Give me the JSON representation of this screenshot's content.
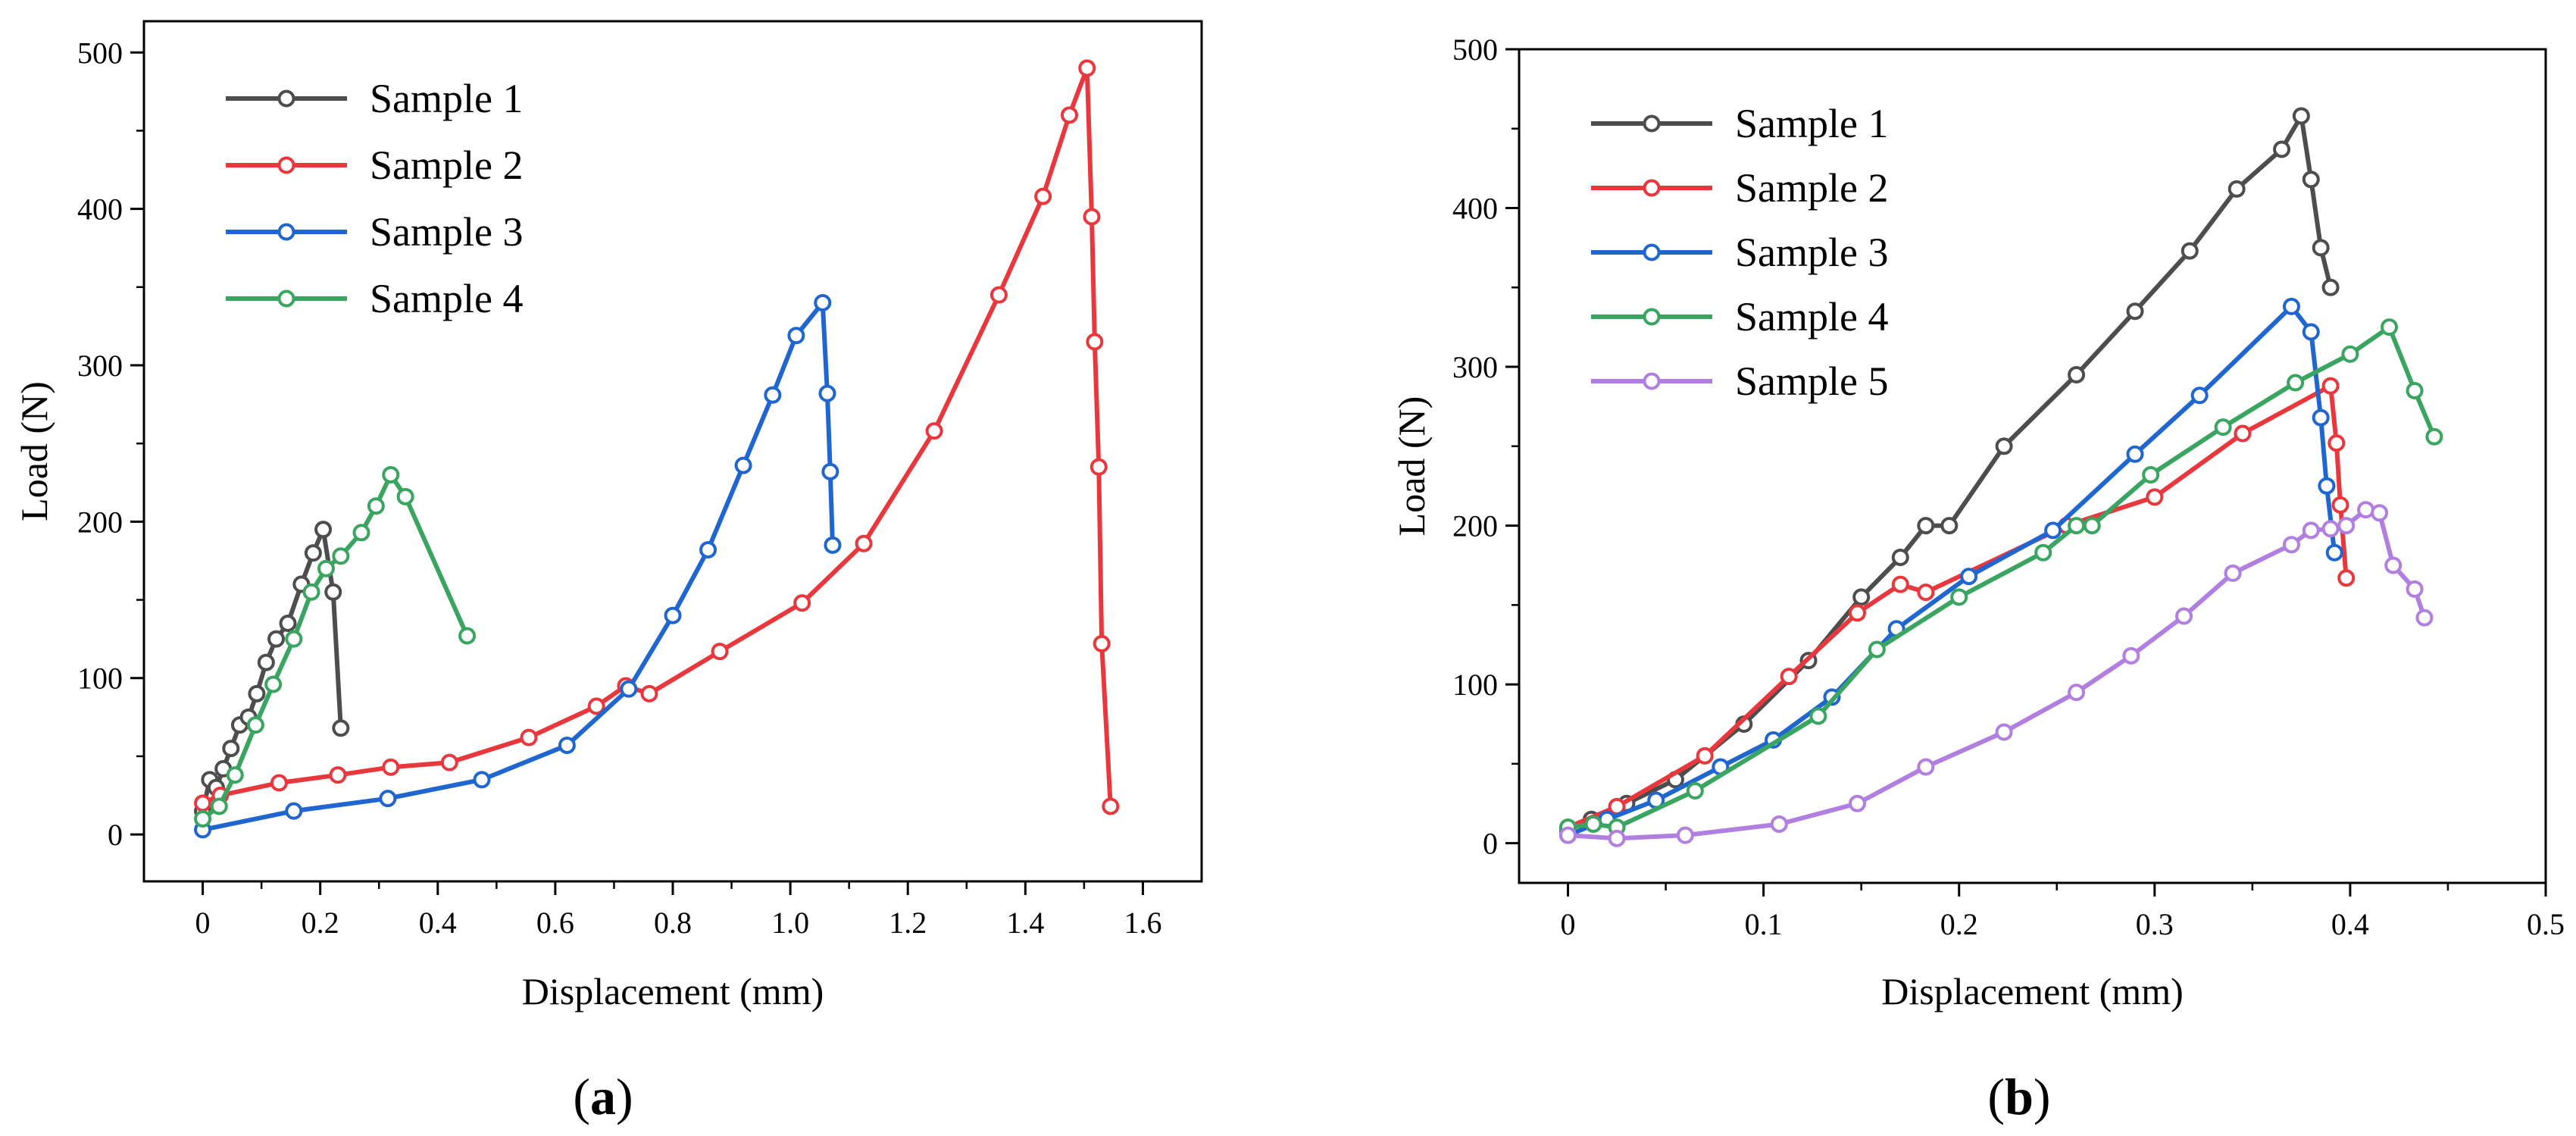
{
  "chart_data": [
    {
      "type": "line",
      "panel_label": {
        "open": "(",
        "letter": "a",
        "close": ")"
      },
      "title": "",
      "xlabel": "Displacement (mm)",
      "ylabel": "Load (N)",
      "xlim": [
        -0.1,
        1.7
      ],
      "ylim": [
        -30,
        520
      ],
      "xticks": [
        0,
        0.2,
        0.4,
        0.6,
        0.8,
        1.0,
        1.2,
        1.4,
        1.6
      ],
      "xtick_labels": [
        "0",
        "0.2",
        "0.4",
        "0.6",
        "0.8",
        "1.0",
        "1.2",
        "1.4",
        "1.6"
      ],
      "yticks": [
        0,
        100,
        200,
        300,
        400,
        500
      ],
      "ytick_labels": [
        "0",
        "100",
        "200",
        "300",
        "400",
        "500"
      ],
      "legend_position": "top-left",
      "series": [
        {
          "name": "Sample 1",
          "color": "#4d4d4d",
          "x": [
            0,
            0.012,
            0.023,
            0.035,
            0.048,
            0.063,
            0.078,
            0.092,
            0.108,
            0.125,
            0.145,
            0.168,
            0.188,
            0.205,
            0.222,
            0.235
          ],
          "y": [
            15,
            35,
            30,
            42,
            55,
            70,
            75,
            90,
            110,
            125,
            135,
            160,
            180,
            195,
            155,
            68
          ]
        },
        {
          "name": "Sample 2",
          "color": "#e8383d",
          "x": [
            0,
            0.03,
            0.13,
            0.23,
            0.32,
            0.42,
            0.555,
            0.67,
            0.72,
            0.76,
            0.88,
            1.02,
            1.125,
            1.245,
            1.355,
            1.43,
            1.475,
            1.505,
            1.513,
            1.518,
            1.525,
            1.53,
            1.545
          ],
          "y": [
            20,
            25,
            33,
            38,
            43,
            46,
            62,
            82,
            95,
            90,
            117,
            148,
            186,
            258,
            345,
            408,
            460,
            490,
            395,
            315,
            235,
            122,
            18
          ]
        },
        {
          "name": "Sample 3",
          "color": "#1f66d1",
          "x": [
            0,
            0.155,
            0.315,
            0.475,
            0.62,
            0.725,
            0.8,
            0.86,
            0.92,
            0.97,
            1.01,
            1.055,
            1.063,
            1.068,
            1.072
          ],
          "y": [
            3,
            15,
            23,
            35,
            57,
            93,
            140,
            182,
            236,
            281,
            319,
            340,
            282,
            232,
            185
          ]
        },
        {
          "name": "Sample 4",
          "color": "#3aa560",
          "x": [
            0,
            0.028,
            0.055,
            0.09,
            0.12,
            0.155,
            0.185,
            0.21,
            0.235,
            0.27,
            0.295,
            0.32,
            0.345,
            0.45
          ],
          "y": [
            10,
            18,
            38,
            70,
            96,
            125,
            155,
            170,
            178,
            193,
            210,
            230,
            216,
            127
          ]
        }
      ]
    },
    {
      "type": "line",
      "panel_label": {
        "open": "(",
        "letter": "b",
        "close": ")"
      },
      "title": "",
      "xlabel": "Displacement (mm)",
      "ylabel": "Load (N)",
      "xlim": [
        -0.025,
        0.5
      ],
      "ylim": [
        -25,
        500
      ],
      "xticks": [
        0,
        0.1,
        0.2,
        0.3,
        0.4,
        0.5
      ],
      "xtick_labels": [
        "0",
        "0.1",
        "0.2",
        "0.3",
        "0.4",
        "0.5"
      ],
      "yticks": [
        0,
        100,
        200,
        300,
        400,
        500
      ],
      "ytick_labels": [
        "0",
        "100",
        "200",
        "300",
        "400",
        "500"
      ],
      "legend_position": "top-left",
      "series": [
        {
          "name": "Sample 1",
          "color": "#4d4d4d",
          "x": [
            0,
            0.012,
            0.03,
            0.055,
            0.09,
            0.123,
            0.15,
            0.17,
            0.183,
            0.195,
            0.223,
            0.26,
            0.29,
            0.318,
            0.342,
            0.365,
            0.375,
            0.38,
            0.385,
            0.39
          ],
          "y": [
            8,
            15,
            25,
            40,
            75,
            115,
            155,
            180,
            200,
            200,
            250,
            295,
            335,
            373,
            412,
            437,
            458,
            418,
            375,
            350
          ]
        },
        {
          "name": "Sample 2",
          "color": "#e8383d",
          "x": [
            0,
            0.025,
            0.07,
            0.113,
            0.148,
            0.17,
            0.183,
            0.255,
            0.3,
            0.345,
            0.39,
            0.393,
            0.395,
            0.398
          ],
          "y": [
            10,
            23,
            55,
            105,
            145,
            163,
            158,
            200,
            218,
            258,
            288,
            252,
            213,
            167
          ]
        },
        {
          "name": "Sample 3",
          "color": "#1f66d1",
          "x": [
            0,
            0.02,
            0.045,
            0.078,
            0.105,
            0.135,
            0.168,
            0.205,
            0.248,
            0.29,
            0.323,
            0.37,
            0.38,
            0.385,
            0.388,
            0.392
          ],
          "y": [
            5,
            15,
            27,
            48,
            65,
            92,
            135,
            168,
            197,
            245,
            282,
            338,
            322,
            268,
            225,
            183
          ]
        },
        {
          "name": "Sample 4",
          "color": "#3aa560",
          "x": [
            0,
            0.013,
            0.025,
            0.065,
            0.128,
            0.158,
            0.2,
            0.243,
            0.26,
            0.268,
            0.298,
            0.335,
            0.372,
            0.4,
            0.42,
            0.433,
            0.443
          ],
          "y": [
            10,
            12,
            10,
            33,
            80,
            122,
            155,
            183,
            200,
            200,
            232,
            262,
            290,
            308,
            325,
            285,
            256
          ]
        },
        {
          "name": "Sample 5",
          "color": "#b07fe0",
          "x": [
            0,
            0.025,
            0.06,
            0.108,
            0.148,
            0.183,
            0.223,
            0.26,
            0.288,
            0.315,
            0.34,
            0.37,
            0.38,
            0.39,
            0.398,
            0.408,
            0.415,
            0.422,
            0.433,
            0.438
          ],
          "y": [
            5,
            3,
            5,
            12,
            25,
            48,
            70,
            95,
            118,
            143,
            170,
            188,
            197,
            198,
            200,
            210,
            208,
            175,
            160,
            142
          ]
        }
      ]
    }
  ]
}
